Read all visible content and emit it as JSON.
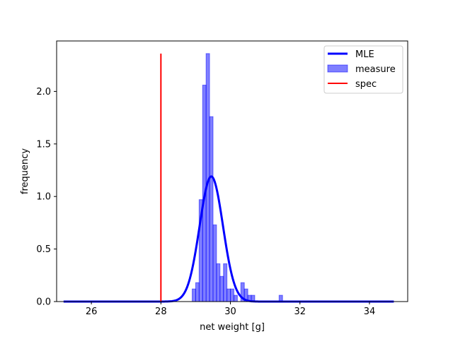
{
  "chart_data": {
    "type": "bar",
    "title": "",
    "xlabel": "net weight [g]",
    "ylabel": "frequency",
    "xlim": [
      25.0,
      35.1
    ],
    "ylim": [
      0.0,
      2.48
    ],
    "xticks": [
      26,
      28,
      30,
      32,
      34
    ],
    "yticks": [
      0.0,
      0.5,
      1.0,
      1.5,
      2.0
    ],
    "xtick_labels": [
      "26",
      "28",
      "30",
      "32",
      "34"
    ],
    "ytick_labels": [
      "0.0",
      "0.5",
      "1.0",
      "1.5",
      "2.0"
    ],
    "grid": false,
    "legend": {
      "placement": "top-right",
      "entries": [
        "MLE",
        "measure",
        "spec"
      ]
    },
    "series": [
      {
        "name": "MLE",
        "kind": "line",
        "color": "#0000ff",
        "distribution": "normal",
        "mean": 29.45,
        "std": 0.335,
        "x_range": [
          25.2,
          34.7
        ]
      },
      {
        "name": "measure",
        "kind": "histogram",
        "color": "#0000ff",
        "alpha": 0.5,
        "bin_width": 0.1,
        "bins": [
          {
            "x0": 28.9,
            "value": 0.12
          },
          {
            "x0": 29.0,
            "value": 0.18
          },
          {
            "x0": 29.1,
            "value": 0.97
          },
          {
            "x0": 29.2,
            "value": 2.06
          },
          {
            "x0": 29.3,
            "value": 2.36
          },
          {
            "x0": 29.4,
            "value": 1.76
          },
          {
            "x0": 29.5,
            "value": 0.73
          },
          {
            "x0": 29.6,
            "value": 0.36
          },
          {
            "x0": 29.7,
            "value": 0.24
          },
          {
            "x0": 29.8,
            "value": 0.36
          },
          {
            "x0": 29.9,
            "value": 0.12
          },
          {
            "x0": 30.0,
            "value": 0.12
          },
          {
            "x0": 30.1,
            "value": 0.06
          },
          {
            "x0": 30.3,
            "value": 0.18
          },
          {
            "x0": 30.4,
            "value": 0.12
          },
          {
            "x0": 30.5,
            "value": 0.06
          },
          {
            "x0": 30.6,
            "value": 0.06
          },
          {
            "x0": 31.4,
            "value": 0.06
          }
        ]
      },
      {
        "name": "spec",
        "kind": "vline",
        "color": "#ff0000",
        "x": 28.0,
        "y_range": [
          0.0,
          2.36
        ]
      }
    ]
  }
}
